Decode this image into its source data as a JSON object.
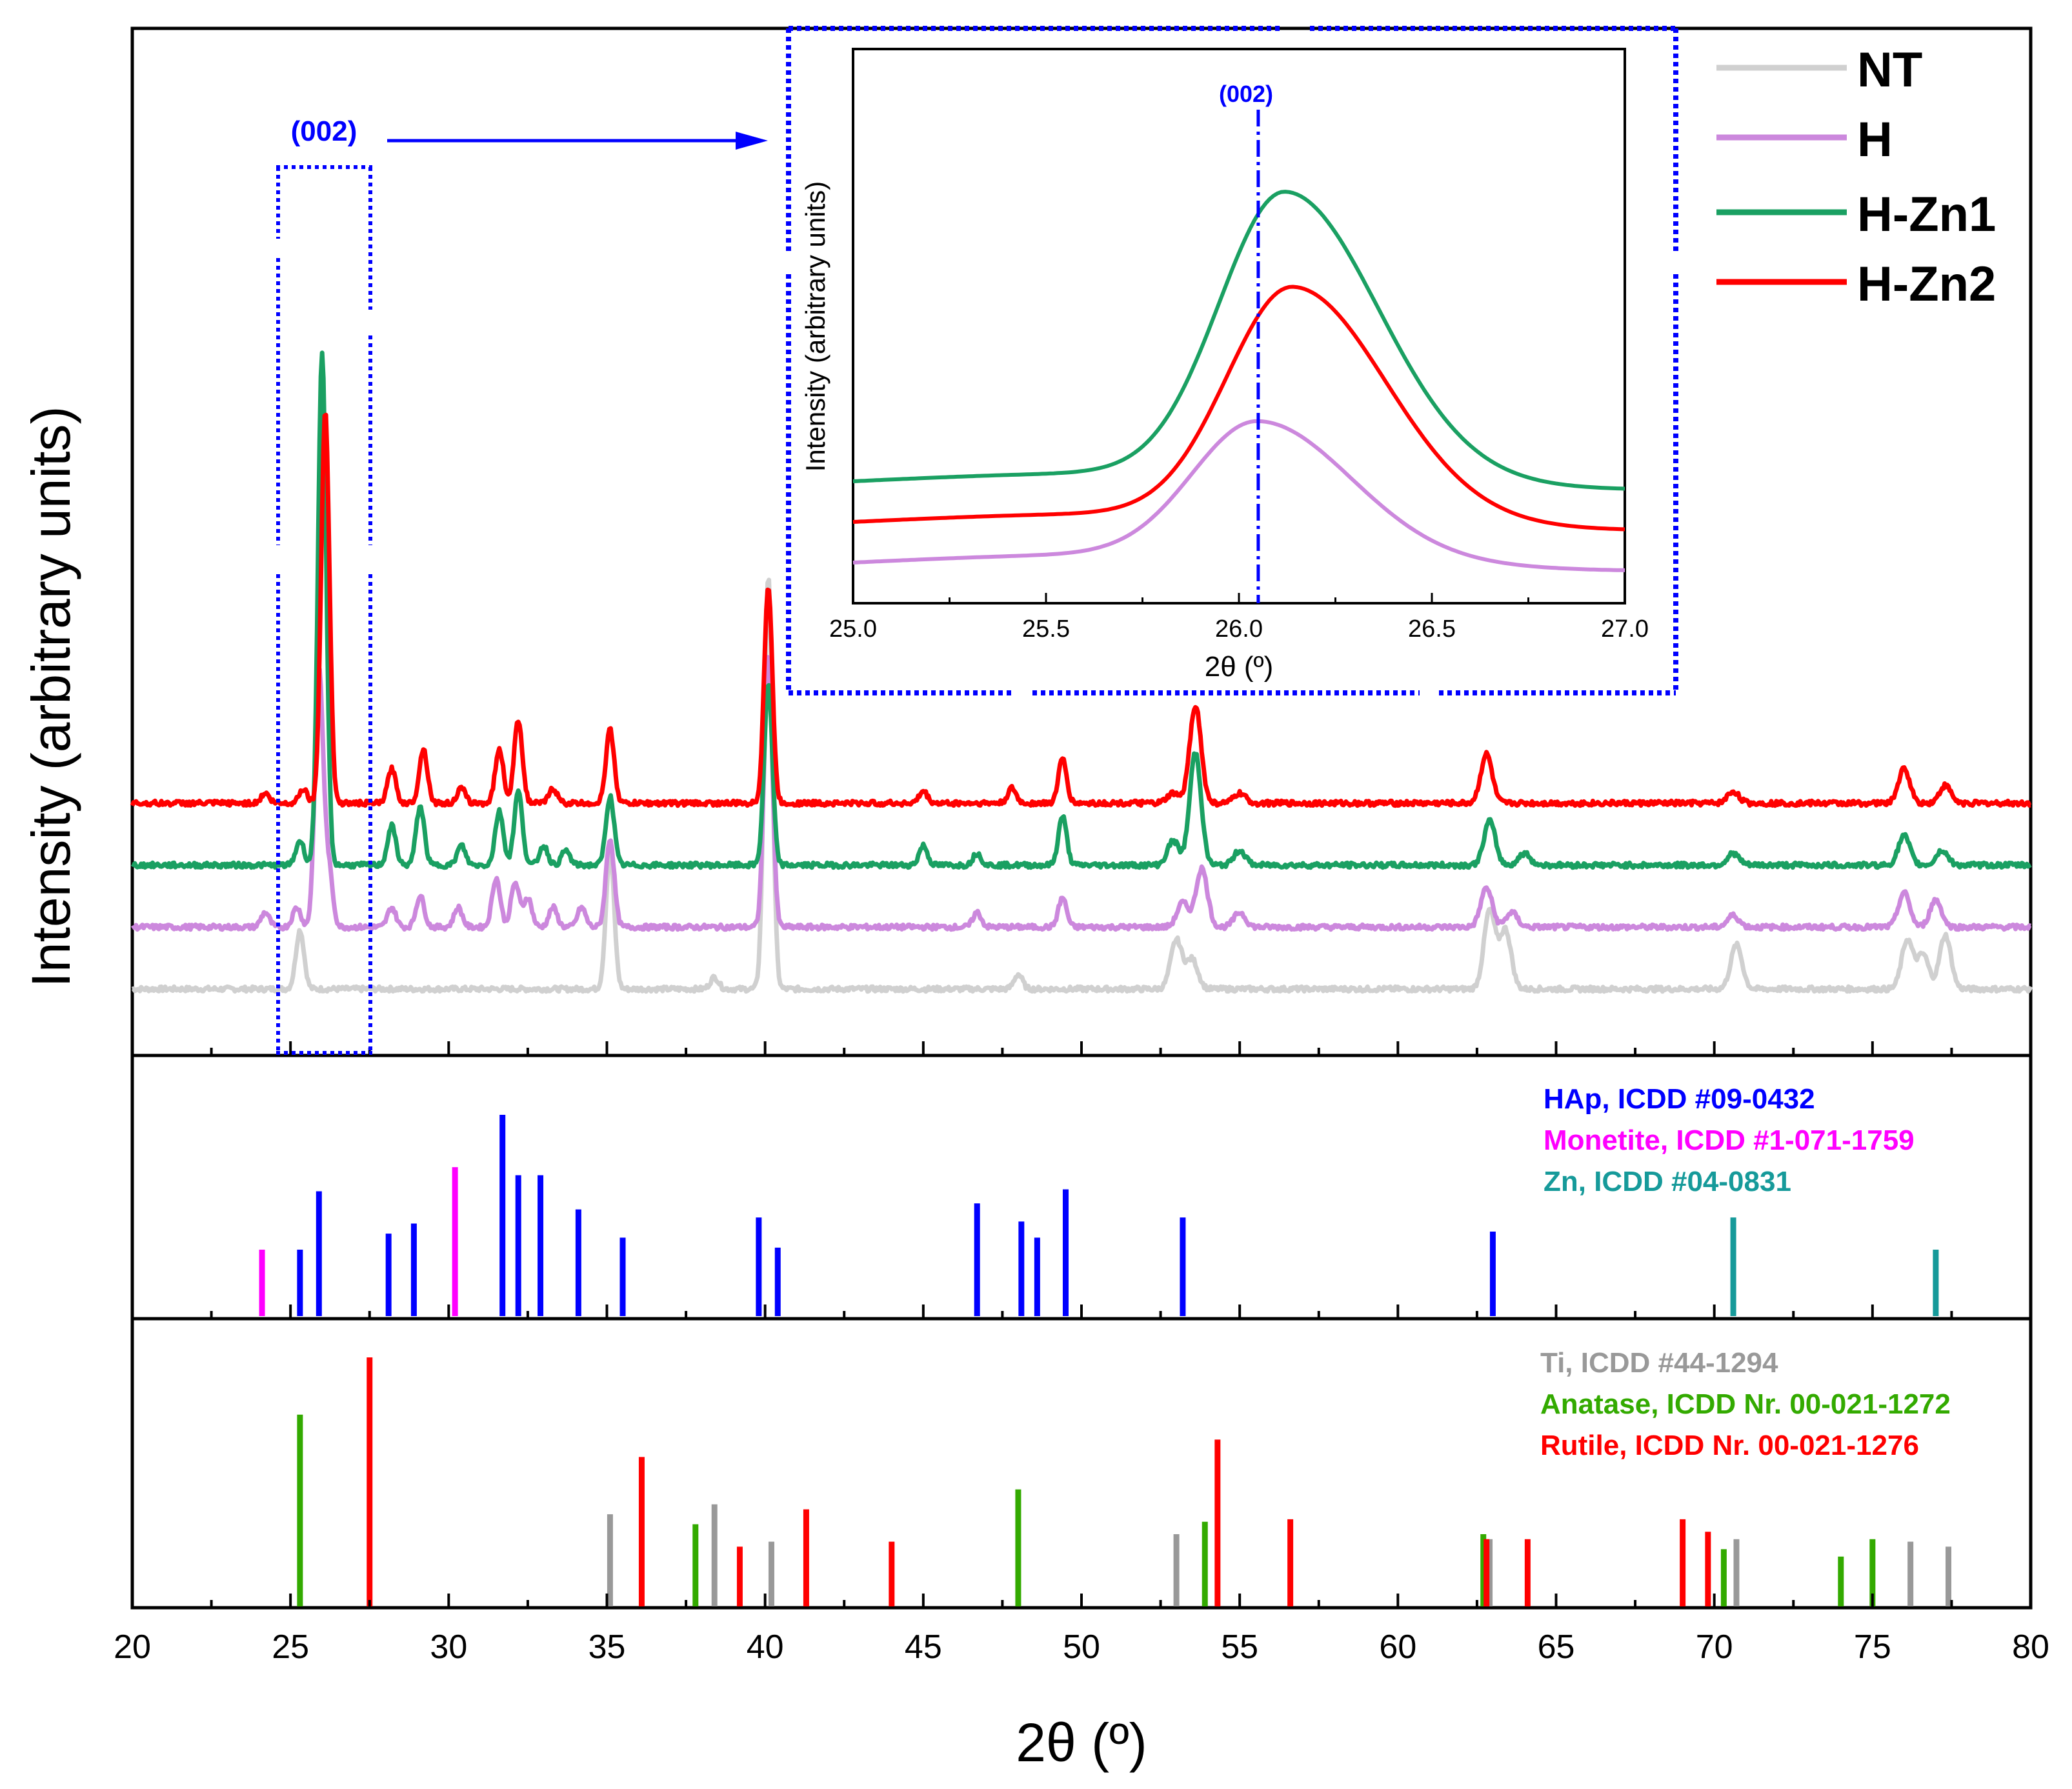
{
  "chart_data": [
    {
      "panel": "main-xrd",
      "type": "line",
      "xlabel": "2θ (º)",
      "ylabel": "Intensity (arbitrary units)",
      "xlim": [
        20,
        80
      ],
      "x_ticks": [
        "20",
        "25",
        "30",
        "35",
        "40",
        "45",
        "50",
        "55",
        "60",
        "65",
        "70",
        "75",
        "80"
      ],
      "legend_position": "top-right",
      "annotation": "(002)",
      "series": [
        {
          "name": "NT",
          "color": "#d0d0d0",
          "offset": 0,
          "peaks": [
            [
              25.3,
              0.6
            ],
            [
              35.1,
              1.4
            ],
            [
              38.4,
              0.12
            ],
            [
              40.1,
              4.2
            ],
            [
              48.0,
              0.15
            ],
            [
              53.0,
              0.5
            ],
            [
              53.5,
              0.3
            ],
            [
              62.9,
              0.8
            ],
            [
              63.4,
              0.6
            ],
            [
              70.7,
              0.45
            ],
            [
              76.1,
              0.5
            ],
            [
              77.3,
              0.55
            ],
            [
              76.6,
              0.35
            ]
          ]
        },
        {
          "name": "H",
          "color": "#cc88dd",
          "offset": 1,
          "peaks": [
            [
              24.2,
              0.15
            ],
            [
              25.2,
              0.2
            ],
            [
              25.9,
              2.6
            ],
            [
              26.2,
              0.6
            ],
            [
              28.2,
              0.2
            ],
            [
              29.1,
              0.32
            ],
            [
              30.3,
              0.2
            ],
            [
              31.5,
              0.5
            ],
            [
              32.1,
              0.45
            ],
            [
              32.5,
              0.3
            ],
            [
              33.3,
              0.2
            ],
            [
              34.2,
              0.2
            ],
            [
              35.1,
              0.9
            ],
            [
              40.1,
              2.8
            ],
            [
              46.7,
              0.15
            ],
            [
              49.4,
              0.3
            ],
            [
              53.2,
              0.25
            ],
            [
              53.8,
              0.6
            ],
            [
              55.0,
              0.15
            ],
            [
              62.8,
              0.4
            ],
            [
              63.6,
              0.15
            ],
            [
              70.6,
              0.12
            ],
            [
              76.0,
              0.35
            ],
            [
              77.0,
              0.28
            ]
          ]
        },
        {
          "name": "H-Zn1",
          "color": "#1aa062",
          "offset": 2,
          "peaks": [
            [
              25.3,
              0.25
            ],
            [
              26.0,
              5.2
            ],
            [
              28.2,
              0.4
            ],
            [
              29.1,
              0.6
            ],
            [
              30.4,
              0.2
            ],
            [
              31.6,
              0.55
            ],
            [
              32.2,
              0.75
            ],
            [
              33.0,
              0.2
            ],
            [
              33.7,
              0.15
            ],
            [
              35.1,
              0.7
            ],
            [
              40.1,
              1.85
            ],
            [
              45.0,
              0.2
            ],
            [
              46.7,
              0.12
            ],
            [
              49.4,
              0.5
            ],
            [
              52.9,
              0.25
            ],
            [
              53.6,
              1.15
            ],
            [
              55.0,
              0.15
            ],
            [
              62.9,
              0.45
            ],
            [
              64.0,
              0.12
            ],
            [
              70.6,
              0.12
            ],
            [
              76.0,
              0.3
            ],
            [
              77.2,
              0.15
            ]
          ]
        },
        {
          "name": "H-Zn2",
          "color": "#ff0000",
          "offset": 3,
          "peaks": [
            [
              24.2,
              0.1
            ],
            [
              25.4,
              0.15
            ],
            [
              26.1,
              4.0
            ],
            [
              28.2,
              0.35
            ],
            [
              29.2,
              0.55
            ],
            [
              30.4,
              0.15
            ],
            [
              31.6,
              0.55
            ],
            [
              32.2,
              0.85
            ],
            [
              33.3,
              0.15
            ],
            [
              35.1,
              0.75
            ],
            [
              40.1,
              2.2
            ],
            [
              45.0,
              0.12
            ],
            [
              47.8,
              0.15
            ],
            [
              49.4,
              0.45
            ],
            [
              52.9,
              0.1
            ],
            [
              53.6,
              1.0
            ],
            [
              55.0,
              0.1
            ],
            [
              62.8,
              0.5
            ],
            [
              70.6,
              0.12
            ],
            [
              76.0,
              0.35
            ],
            [
              77.3,
              0.18
            ]
          ]
        }
      ]
    },
    {
      "panel": "inset-002",
      "type": "line",
      "xlabel": "2θ (º)",
      "ylabel": "Intensity (arbitrary units)",
      "xlim": [
        25.0,
        27.0
      ],
      "x_ticks": [
        "25.0",
        "25.5",
        "26.0",
        "26.5",
        "27.0"
      ],
      "marker_line": {
        "x": 26.05,
        "label": "(002)"
      },
      "series": [
        {
          "name": "H",
          "color": "#cc88dd",
          "base": 0.0,
          "peak_x": 26.05,
          "peak_height": 1.0
        },
        {
          "name": "H-Zn1",
          "color": "#1aa062",
          "base": 0.6,
          "peak_x": 26.12,
          "peak_height": 2.1
        },
        {
          "name": "H-Zn2",
          "color": "#ff0000",
          "base": 0.3,
          "peak_x": 26.14,
          "peak_height": 1.7
        }
      ]
    },
    {
      "panel": "reference-phases-1",
      "type": "bar",
      "legend_position": "top-right",
      "series": [
        {
          "name": "HAp, ICDD #09-0432",
          "color": "#0000ff",
          "positions": [
            25.3,
            25.9,
            28.1,
            28.9,
            31.7,
            32.2,
            32.9,
            34.1,
            35.5,
            39.8,
            40.4,
            46.7,
            48.1,
            48.6,
            49.5,
            53.2,
            63.0
          ],
          "values": [
            0.33,
            0.62,
            0.41,
            0.46,
            1.0,
            0.7,
            0.7,
            0.53,
            0.39,
            0.49,
            0.34,
            0.56,
            0.47,
            0.39,
            0.63,
            0.49,
            0.42
          ]
        },
        {
          "name": "Monetite, ICDD #1-071-1759",
          "color": "#ff00ff",
          "positions": [
            24.1,
            30.2
          ],
          "values": [
            0.33,
            0.74
          ]
        },
        {
          "name": "Zn, ICDD #04-0831",
          "color": "#169a9a",
          "positions": [
            70.6,
            77.0
          ],
          "values": [
            0.49,
            0.33
          ]
        }
      ]
    },
    {
      "panel": "reference-phases-2",
      "type": "bar",
      "legend_position": "top-right",
      "series": [
        {
          "name": "Ti, ICDD #44-1294",
          "color": "#999999",
          "positions": [
            35.1,
            38.4,
            40.2,
            53.0,
            62.9,
            70.7,
            76.2,
            77.4
          ],
          "values": [
            0.37,
            0.41,
            0.26,
            0.29,
            0.27,
            0.27,
            0.26,
            0.24
          ]
        },
        {
          "name": "Anatase, ICDD Nr. 00-021-1272",
          "color": "#33aa00",
          "positions": [
            25.3,
            37.8,
            48.0,
            53.9,
            62.7,
            70.3,
            74.0,
            75.0
          ],
          "values": [
            0.77,
            0.33,
            0.47,
            0.34,
            0.29,
            0.23,
            0.2,
            0.27
          ]
        },
        {
          "name": "Rutile, ICDD Nr. 00-021-1276",
          "color": "#ff0000",
          "positions": [
            27.5,
            36.1,
            39.2,
            41.3,
            44.0,
            54.3,
            56.6,
            62.8,
            64.1,
            69.0,
            69.8
          ],
          "values": [
            1.0,
            0.6,
            0.24,
            0.39,
            0.26,
            0.67,
            0.35,
            0.27,
            0.27,
            0.35,
            0.3
          ]
        }
      ]
    }
  ]
}
